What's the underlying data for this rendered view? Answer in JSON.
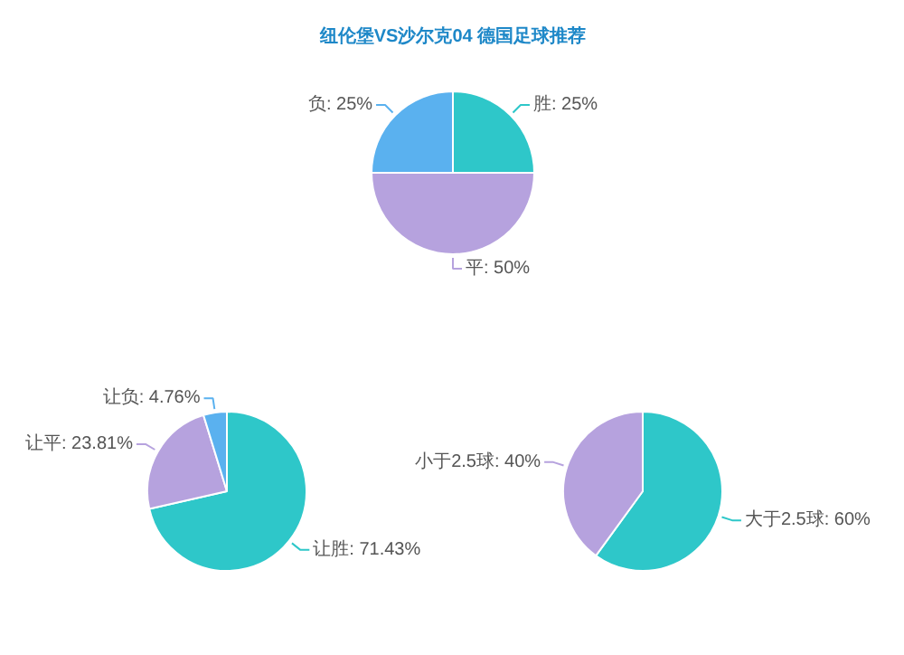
{
  "chart_data": [
    {
      "type": "pie",
      "title": "纽伦堡VS沙尔克04 德国足球推荐",
      "categories": [
        "胜",
        "平",
        "负"
      ],
      "values": [
        25,
        50,
        25
      ],
      "value_labels": [
        "25%",
        "50%",
        "25%"
      ],
      "colors": [
        "#2ec7c9",
        "#b6a2de",
        "#5ab1ef"
      ]
    },
    {
      "type": "pie",
      "categories": [
        "让胜",
        "让平",
        "让负"
      ],
      "values": [
        71.43,
        23.81,
        4.76
      ],
      "value_labels": [
        "71.43%",
        "23.81%",
        "4.76%"
      ],
      "colors": [
        "#2ec7c9",
        "#b6a2de",
        "#5ab1ef"
      ]
    },
    {
      "type": "pie",
      "categories": [
        "大于2.5球",
        "小于2.5球"
      ],
      "values": [
        60,
        40
      ],
      "value_labels": [
        "60%",
        "40%"
      ],
      "colors": [
        "#2ec7c9",
        "#b6a2de"
      ]
    }
  ]
}
